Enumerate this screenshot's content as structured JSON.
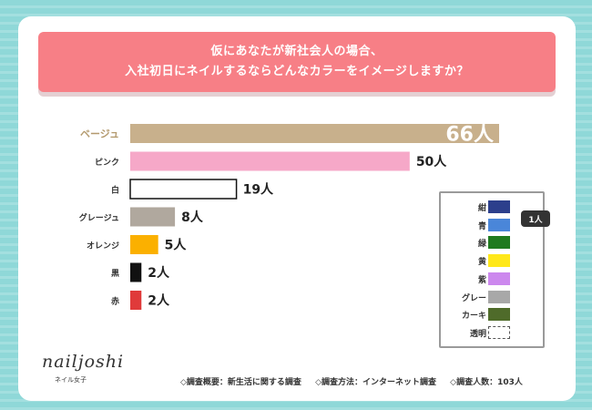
{
  "header": {
    "line1": "仮にあなたが新社会人の場合、",
    "line2": "入社初日にネイルするならどんなカラーをイメージしますか？"
  },
  "chart_data": {
    "type": "bar",
    "orientation": "horizontal",
    "title": "",
    "unit": "人",
    "categories": [
      "ベージュ",
      "ピンク",
      "白",
      "グレージュ",
      "オレンジ",
      "黒",
      "赤"
    ],
    "values": [
      66,
      50,
      19,
      8,
      5,
      2,
      2
    ],
    "value_labels": [
      "66人",
      "50人",
      "19人",
      "8人",
      "5人",
      "2人",
      "2人"
    ],
    "colors": [
      "#c8b08c",
      "#f6a8c8",
      "#ffffff",
      "#b0a89e",
      "#fbb000",
      "#111111",
      "#e03a3a"
    ],
    "xlim": [
      0,
      66
    ],
    "legend": {
      "position": "right",
      "badge": "1人",
      "items": [
        {
          "label": "紺",
          "color": "#2c3f8c"
        },
        {
          "label": "青",
          "color": "#4a86d9"
        },
        {
          "label": "緑",
          "color": "#1f7a1f"
        },
        {
          "label": "黄",
          "color": "#ffe81a"
        },
        {
          "label": "紫",
          "color": "#cc88ee"
        },
        {
          "label": "グレー",
          "color": "#a8a8a8"
        },
        {
          "label": "カーキ",
          "color": "#4f6b2a"
        },
        {
          "label": "透明",
          "color": "transparent"
        }
      ]
    }
  },
  "logo": {
    "name": "nailjoshi",
    "sub": "ネイル女子"
  },
  "footer": {
    "survey_outline": "◇調査概要：新生活に関する調査",
    "survey_method": "◇調査方法：インターネット調査",
    "respondents": "◇調査人数：103人"
  }
}
